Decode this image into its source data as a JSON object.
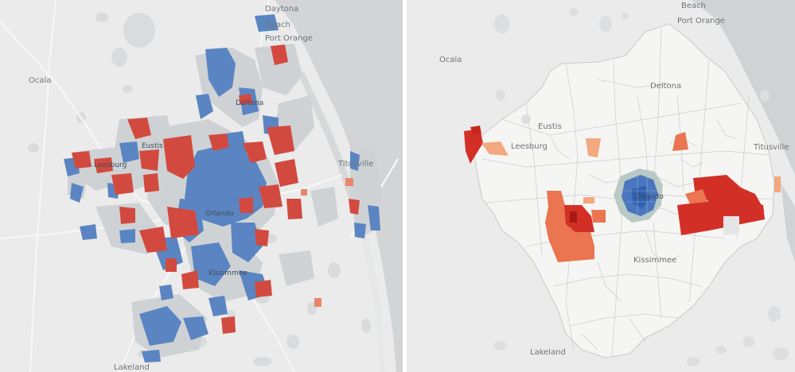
{
  "left_panel": {
    "labels": {
      "daytona": "Daytona",
      "beach": "Beach",
      "port_orange": "Port Orange",
      "ocala": "Ocala",
      "deltona": "Deltona",
      "eustis": "Eustis",
      "leesburg": "Leesburg",
      "titusville": "Titusville",
      "orlando": "Orlando",
      "kissimmee": "Kissimmee",
      "lakeland": "Lakeland"
    },
    "colors": {
      "blue": "#4f7fbf",
      "red": "#d9463b",
      "salmon": "#e8866b",
      "gray": "#cfd2d5"
    }
  },
  "right_panel": {
    "labels": {
      "beach": "Beach",
      "port_orange": "Port Orange",
      "ocala": "Ocala",
      "deltona": "Deltona",
      "eustis": "Eustis",
      "leesburg": "Leesburg",
      "titusville": "Titusville",
      "orlando": "Orlando",
      "kissimmee": "Kissimmee",
      "lakeland": "Lakeland"
    },
    "colors": {
      "dark_red": "#d23027",
      "orange": "#ea7550",
      "light_orange": "#f3a87e",
      "blue": "#3e6fc0",
      "tract_fill": "#f6f6f4"
    }
  }
}
